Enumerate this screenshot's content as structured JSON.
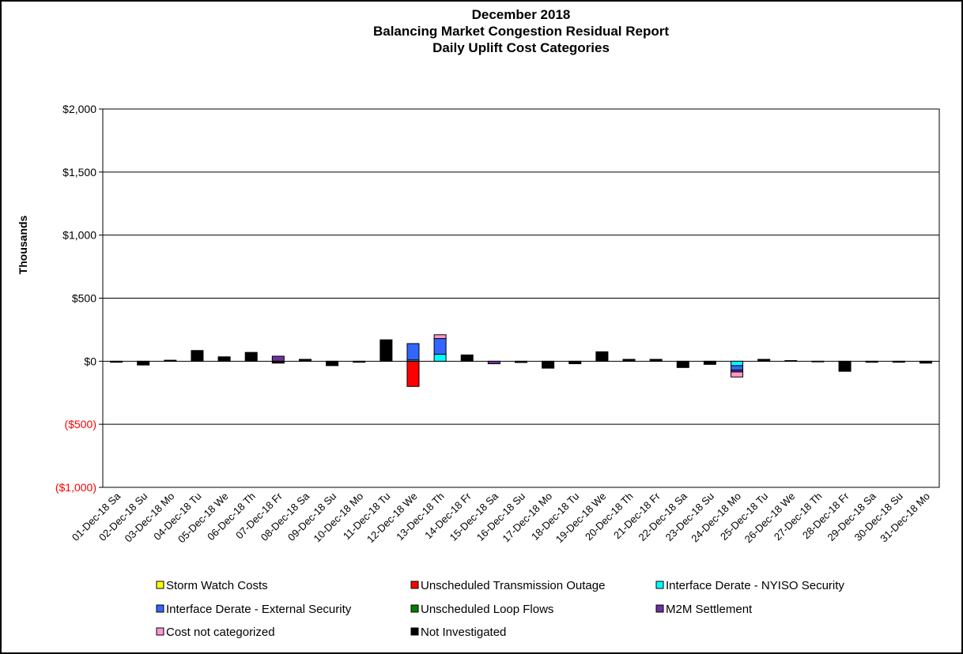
{
  "chart_data": {
    "type": "stacked_bar",
    "title_lines": [
      "December 2018",
      "Balancing Market Congestion Residual Report",
      "Daily Uplift Cost Categories"
    ],
    "y_label": "Thousands",
    "categories": [
      "01-Dec-18 Sa",
      "02-Dec-18 Su",
      "03-Dec-18 Mo",
      "04-Dec-18 Tu",
      "05-Dec-18 We",
      "06-Dec-18 Th",
      "07-Dec-18 Fr",
      "08-Dec-18 Sa",
      "09-Dec-18 Su",
      "10-Dec-18 Mo",
      "11-Dec-18 Tu",
      "12-Dec-18 We",
      "13-Dec-18 Th",
      "14-Dec-18 Fr",
      "15-Dec-18 Sa",
      "16-Dec-18 Su",
      "17-Dec-18 Mo",
      "18-Dec-18 Tu",
      "19-Dec-18 We",
      "20-Dec-18 Th",
      "21-Dec-18 Fr",
      "22-Dec-18 Sa",
      "23-Dec-18 Su",
      "24-Dec-18 Mo",
      "25-Dec-18 Tu",
      "26-Dec-18 We",
      "27-Dec-18 Th",
      "28-Dec-18 Fr",
      "29-Dec-18 Sa",
      "30-Dec-18 Su",
      "31-Dec-18 Mo"
    ],
    "series": [
      {
        "name": "Storm Watch Costs",
        "color": "#ffff00",
        "values": [
          0,
          0,
          0,
          0,
          0,
          0,
          0,
          0,
          0,
          0,
          0,
          0,
          0,
          0,
          0,
          0,
          0,
          0,
          0,
          0,
          0,
          0,
          0,
          0,
          0,
          0,
          0,
          0,
          0,
          0,
          0
        ]
      },
      {
        "name": "Unscheduled Transmission Outage",
        "color": "#ff0000",
        "values": [
          0,
          0,
          0,
          0,
          0,
          0,
          0,
          0,
          0,
          0,
          0,
          -200,
          0,
          0,
          0,
          0,
          0,
          0,
          0,
          0,
          0,
          0,
          0,
          0,
          0,
          0,
          0,
          0,
          0,
          0,
          0
        ]
      },
      {
        "name": "Interface Derate - NYISO Security",
        "color": "#00ffff",
        "values": [
          0,
          0,
          0,
          0,
          0,
          0,
          0,
          0,
          0,
          0,
          0,
          10,
          55,
          0,
          0,
          0,
          0,
          0,
          0,
          0,
          0,
          0,
          0,
          -35,
          0,
          0,
          0,
          0,
          0,
          0,
          0
        ]
      },
      {
        "name": "Interface Derate - External Security",
        "color": "#3366ff",
        "values": [
          0,
          0,
          0,
          0,
          0,
          0,
          0,
          0,
          0,
          0,
          0,
          130,
          125,
          0,
          0,
          0,
          0,
          0,
          0,
          0,
          0,
          0,
          0,
          -35,
          0,
          0,
          0,
          0,
          0,
          0,
          0
        ]
      },
      {
        "name": "Unscheduled Loop Flows",
        "color": "#008000",
        "values": [
          0,
          0,
          0,
          0,
          0,
          0,
          0,
          0,
          0,
          0,
          0,
          0,
          0,
          0,
          0,
          0,
          0,
          0,
          0,
          0,
          0,
          0,
          0,
          0,
          0,
          0,
          0,
          0,
          0,
          0,
          0
        ]
      },
      {
        "name": "M2M Settlement",
        "color": "#7030a0",
        "values": [
          0,
          0,
          0,
          0,
          0,
          0,
          40,
          0,
          0,
          0,
          0,
          0,
          0,
          0,
          -20,
          0,
          0,
          0,
          0,
          0,
          0,
          0,
          0,
          -15,
          0,
          0,
          0,
          0,
          0,
          0,
          0
        ]
      },
      {
        "name": "Cost not categorized",
        "color": "#ff99cc",
        "values": [
          0,
          0,
          0,
          0,
          0,
          0,
          0,
          0,
          0,
          0,
          0,
          0,
          30,
          0,
          0,
          0,
          0,
          0,
          0,
          0,
          0,
          0,
          0,
          -40,
          0,
          0,
          0,
          0,
          0,
          0,
          0
        ]
      },
      {
        "name": "Not Investigated",
        "color": "#000000",
        "values": [
          -8,
          -30,
          8,
          85,
          35,
          70,
          -15,
          15,
          -35,
          -8,
          170,
          0,
          0,
          50,
          0,
          -10,
          -55,
          -20,
          75,
          15,
          15,
          -50,
          -25,
          0,
          15,
          5,
          -5,
          -80,
          -8,
          -8,
          -15
        ]
      }
    ],
    "ylim": [
      -1000,
      2000
    ],
    "yticks": [
      {
        "value": -1000,
        "label": "($1,000)"
      },
      {
        "value": -500,
        "label": "($500)"
      },
      {
        "value": 0,
        "label": "$0"
      },
      {
        "value": 500,
        "label": "$500"
      },
      {
        "value": 1000,
        "label": "$1,000"
      },
      {
        "value": 1500,
        "label": "$1,500"
      },
      {
        "value": 2000,
        "label": "$2,000"
      }
    ],
    "negative_tick_color": "#ff0000",
    "grid": true
  }
}
